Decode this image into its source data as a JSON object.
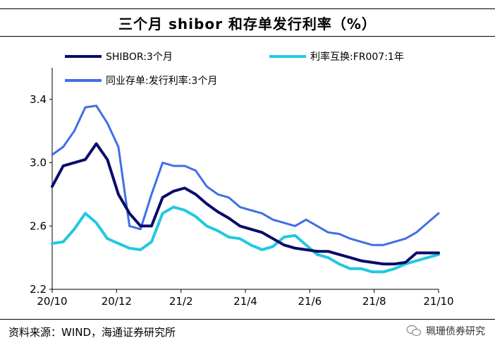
{
  "title": "三个月 shibor 和存单发行利率（%）",
  "source": "资料来源：WIND，海通证券研究所",
  "watermark": "珮珊债券研究",
  "chart_data": {
    "type": "line",
    "ylim": [
      2.2,
      3.6
    ],
    "yticks": [
      "2.2",
      "2.6",
      "3.0",
      "3.4"
    ],
    "xticks": [
      "20/10",
      "20/12",
      "21/2",
      "21/4",
      "21/6",
      "21/8",
      "21/10"
    ],
    "grid": false,
    "legend": "top",
    "x": [
      "20/10",
      "20/10",
      "20/11",
      "20/11",
      "20/11",
      "20/12",
      "20/12",
      "20/12",
      "21/1",
      "21/1",
      "21/1",
      "21/2",
      "21/2",
      "21/2",
      "21/3",
      "21/3",
      "21/3",
      "21/4",
      "21/4",
      "21/4",
      "21/5",
      "21/5",
      "21/5",
      "21/6",
      "21/6",
      "21/6",
      "21/7",
      "21/7",
      "21/7",
      "21/8",
      "21/8",
      "21/8",
      "21/9",
      "21/9",
      "21/9",
      "21/10"
    ],
    "series": [
      {
        "name": "SHIBOR:3个月",
        "color": "#0b0b6b",
        "values": [
          2.85,
          2.98,
          3.0,
          3.02,
          3.12,
          3.02,
          2.8,
          2.68,
          2.6,
          2.6,
          2.78,
          2.82,
          2.84,
          2.8,
          2.74,
          2.69,
          2.65,
          2.6,
          2.58,
          2.56,
          2.52,
          2.48,
          2.46,
          2.45,
          2.44,
          2.44,
          2.42,
          2.4,
          2.38,
          2.37,
          2.36,
          2.36,
          2.37,
          2.43,
          2.43,
          2.43
        ]
      },
      {
        "name": "利率互换:FR007:1年",
        "color": "#22c8e0",
        "values": [
          2.49,
          2.5,
          2.58,
          2.68,
          2.62,
          2.52,
          2.49,
          2.46,
          2.45,
          2.5,
          2.68,
          2.72,
          2.7,
          2.66,
          2.6,
          2.57,
          2.53,
          2.52,
          2.48,
          2.45,
          2.47,
          2.53,
          2.54,
          2.48,
          2.42,
          2.4,
          2.36,
          2.33,
          2.33,
          2.31,
          2.31,
          2.33,
          2.36,
          2.38,
          2.4,
          2.42
        ]
      },
      {
        "name": "同业存单:发行利率:3个月",
        "color": "#3f6ee8",
        "values": [
          3.05,
          3.1,
          3.2,
          3.35,
          3.36,
          3.25,
          3.1,
          2.6,
          2.58,
          2.8,
          3.0,
          2.98,
          2.98,
          2.95,
          2.85,
          2.8,
          2.78,
          2.72,
          2.7,
          2.68,
          2.64,
          2.62,
          2.6,
          2.64,
          2.6,
          2.56,
          2.55,
          2.52,
          2.5,
          2.48,
          2.48,
          2.5,
          2.52,
          2.56,
          2.62,
          2.68
        ]
      }
    ]
  }
}
